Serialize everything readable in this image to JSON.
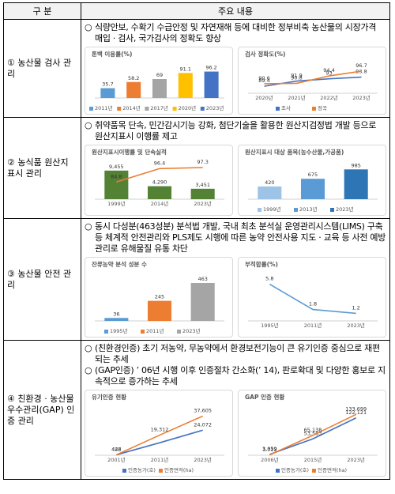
{
  "table": {
    "header": [
      "구 분",
      "주요 내용"
    ],
    "rows": [
      {
        "label": "① 농산물 검사 관리",
        "bullets": [
          "식량안보, 수확기 수급안정 및 자연재해 등에 대비한 정부비축 농산물의 시장가격 매입 · 검사, 국가검사의 정확도 향상"
        ],
        "charts": [
          {
            "type": "bar",
            "title": "톤백 이용률(%)",
            "categories": [
              "2011년",
              "2014년",
              "2017년",
              "2020년",
              "2023년"
            ],
            "values": [
              35.7,
              58.2,
              69,
              91.1,
              96.2
            ],
            "colors": [
              "#5b9bd5",
              "#ed7d31",
              "#a5a5a5",
              "#ffc000",
              "#4472c4"
            ],
            "ylim": [
              0,
              115
            ],
            "legend": "bottom"
          },
          {
            "type": "line",
            "title": "검사 정확도(%)",
            "categories": [
              "2020년",
              "2021년",
              "2022년",
              "2023년"
            ],
            "series": [
              {
                "name": "조사",
                "color": "#4472c4",
                "values": [
                  89.4,
                  91.9,
                  93,
                  93.8
                ]
              },
              {
                "name": "정곡",
                "color": "#ed7d31",
                "values": [
                  90.6,
                  90.8,
                  94.4,
                  96.7
                ]
              }
            ],
            "ylim": [
              86,
              99
            ],
            "legend": "bottom"
          }
        ]
      },
      {
        "label": "② 농식품 원산지 표시 관리",
        "bullets": [
          "취약품목 단속, 민간감시기능 강화, 첨단기술을 활용한 원산지검정법 개발 등으로 원산지표시 이행률 제고"
        ],
        "charts": [
          {
            "type": "combo",
            "title": "원산지표시이행률 및 단속실적",
            "categories": [
              "1999년",
              "2014년",
              "2023년"
            ],
            "series": [
              {
                "type": "bar",
                "color": "#548235",
                "values": [
                  9455,
                  4290,
                  3451
                ],
                "value_labels": [
                  "9,455",
                  "4,290",
                  "3,451"
                ]
              },
              {
                "type": "line",
                "axis": "y2",
                "color": "#ed7d31",
                "values": [
                  84.8,
                  96.4,
                  97.3
                ]
              }
            ],
            "ylim": [
              0,
              11500
            ],
            "y2lim": [
              70,
              100
            ]
          },
          {
            "type": "bar",
            "title": "원산지표시 대상 품목(농수산물,가공품)",
            "categories": [
              "1999년",
              "2013년",
              "2023년"
            ],
            "values": [
              420,
              675,
              985
            ],
            "colors": [
              "#9dc3e6",
              "#5b9bd5",
              "#2e75b6"
            ],
            "ylim": [
              0,
              1150
            ],
            "legend": "bottom"
          }
        ]
      },
      {
        "label": "③ 농산물 안전 관리",
        "bullets": [
          "동시 다성분(463성분) 분석법 개발, 국내 최초 분석실 운영관리시스템(LIMS) 구축 등 체계적 안전관리와 PLS제도 시행에 따른 농약 안전사용 지도 · 교육 등 사전 예방관리로 유해물질 유통 차단"
        ],
        "charts": [
          {
            "type": "bar",
            "title": "잔류농약 분석 성분 수",
            "categories": [
              "1995년",
              "2011년",
              "2023년"
            ],
            "values": [
              36,
              245,
              463
            ],
            "colors": [
              "#5b9bd5",
              "#ed7d31",
              "#a5a5a5"
            ],
            "ylim": [
              0,
              540
            ],
            "legend": "bottom"
          },
          {
            "type": "line",
            "title": "부적합률(%)",
            "categories": [
              "1995년",
              "2011년",
              "2023년"
            ],
            "series": [
              {
                "color": "#5b9bd5",
                "values": [
                  5.8,
                  1.8,
                  1.2
                ]
              }
            ],
            "ylim": [
              0,
              7
            ]
          }
        ]
      },
      {
        "label": "④ 친환경 · 농산물 우수관리(GAP) 인증 관리",
        "bullets": [
          "(친환경인증) 초기 저농약, 무농약에서 환경보전기능이 큰 유기인증 중심으로 재편되는 추세",
          "(GAP인증) ’ 06년 시행 이후 인증절차 간소화(’ 14), 판로확대 및 다양한 홍보로 지속적으로 증가하는 추세"
        ],
        "charts": [
          {
            "type": "line",
            "title": "유기인증 현황",
            "categories": [
              "2001년",
              "2011년",
              "2023년"
            ],
            "series": [
              {
                "name": "인증농가(호)",
                "color": "#4472c4",
                "values": [
                  442,
                  12000,
                  24072
                ],
                "value_labels": [
                  "442",
                  null,
                  "24,072"
                ]
              },
              {
                "name": "인증면적(ha)",
                "color": "#ed7d31",
                "values": [
                  426,
                  19312,
                  37605
                ],
                "value_labels": [
                  "426",
                  "19,312",
                  "37,605"
                ]
              }
            ],
            "ylim": [
              0,
              44000
            ],
            "legend": "bottom"
          },
          {
            "type": "line",
            "title": "GAP 인증 현황",
            "categories": [
              "2006년",
              "2015년",
              "2023년"
            ],
            "series": [
              {
                "name": "인증농가(호)",
                "color": "#4472c4",
                "values": [
                  3059,
                  53583,
                  122121
                ],
                "value_labels": [
                  "3,059",
                  "53,583",
                  "122,121"
                ]
              },
              {
                "name": "인증면적(ha)",
                "color": "#ed7d31",
                "values": [
                  1322,
                  65138,
                  133699
                ],
                "value_labels": [
                  "1,322",
                  "65,138",
                  "133,699"
                ]
              }
            ],
            "ylim": [
              0,
              150000
            ],
            "legend": "bottom"
          }
        ]
      }
    ]
  }
}
